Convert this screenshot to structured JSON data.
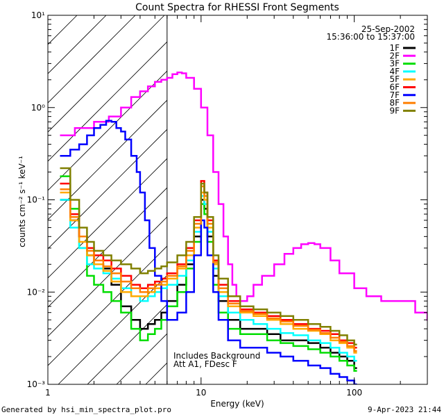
{
  "chart_data": {
    "type": "line",
    "title": "Count Spectra for RHESSI Front Segments",
    "date": "25-Sep-2002",
    "time_range": "15:36:00 to 15:37:00",
    "xlabel": "Energy (keV)",
    "ylabel": "counts cm⁻² s⁻¹ keV⁻¹",
    "xscale": "log",
    "yscale": "log",
    "xlim": [
      1,
      300
    ],
    "ylim": [
      0.001,
      10
    ],
    "x_ticks": [
      {
        "value": 1,
        "label": "1"
      },
      {
        "value": 10,
        "label": "10"
      },
      {
        "value": 100,
        "label": "100"
      }
    ],
    "y_ticks": [
      {
        "value": 0.001,
        "label": "10⁻³"
      },
      {
        "value": 0.01,
        "label": "10⁻²"
      },
      {
        "value": 0.1,
        "label": "10⁻¹"
      },
      {
        "value": 1,
        "label": "10⁰"
      },
      {
        "value": 10,
        "label": "10¹"
      }
    ],
    "shaded_region": {
      "x_from": 1,
      "x_to": 6,
      "style": "diagonal-hatch"
    },
    "annotations": [
      "Includes Background",
      "Att A1, FDesc F"
    ],
    "legend_position": "top-right",
    "series": [
      {
        "name": "1F",
        "color": "#000000",
        "x": [
          1.2,
          1.4,
          1.6,
          1.8,
          2.0,
          2.3,
          2.6,
          3.0,
          3.5,
          4.0,
          4.5,
          5.0,
          5.5,
          6.0,
          7.0,
          8.0,
          9.0,
          10.0,
          10.5,
          11.0,
          12.0,
          13.0,
          15.0,
          18.0,
          22.0,
          27.0,
          33.0,
          40.0,
          50.0,
          60.0,
          70.0,
          80.0,
          90.0,
          100.0
        ],
        "y": [
          0.1,
          0.06,
          0.04,
          0.025,
          0.02,
          0.018,
          0.012,
          0.007,
          0.005,
          0.004,
          0.0045,
          0.005,
          0.006,
          0.008,
          0.012,
          0.02,
          0.04,
          0.1,
          0.08,
          0.04,
          0.015,
          0.008,
          0.005,
          0.004,
          0.004,
          0.0035,
          0.003,
          0.003,
          0.0028,
          0.0025,
          0.0022,
          0.002,
          0.0018,
          0.0015
        ]
      },
      {
        "name": "2F",
        "color": "#ff00ff",
        "x": [
          1.2,
          1.5,
          2.0,
          2.5,
          3.0,
          3.5,
          4.0,
          4.5,
          5.0,
          5.5,
          6.0,
          6.5,
          7.0,
          7.5,
          8.0,
          9.0,
          10.0,
          11.0,
          12.0,
          13.0,
          14.0,
          15.0,
          16.0,
          17.0,
          18.0,
          20.0,
          22.0,
          25.0,
          30.0,
          35.0,
          40.0,
          45.0,
          50.0,
          55.0,
          60.0,
          70.0,
          80.0,
          100.0,
          120.0,
          150.0,
          180.0,
          200.0,
          250.0,
          300.0
        ],
        "y": [
          0.5,
          0.6,
          0.7,
          0.8,
          1.0,
          1.3,
          1.5,
          1.7,
          1.9,
          2.0,
          2.1,
          2.3,
          2.4,
          2.35,
          2.1,
          1.6,
          1.0,
          0.5,
          0.2,
          0.09,
          0.04,
          0.02,
          0.012,
          0.009,
          0.008,
          0.009,
          0.012,
          0.015,
          0.02,
          0.026,
          0.03,
          0.033,
          0.034,
          0.033,
          0.03,
          0.022,
          0.016,
          0.011,
          0.009,
          0.008,
          0.008,
          0.008,
          0.006,
          0.005
        ]
      },
      {
        "name": "3F",
        "color": "#00dd00",
        "x": [
          1.2,
          1.4,
          1.6,
          1.8,
          2.0,
          2.3,
          2.6,
          3.0,
          3.5,
          4.0,
          4.5,
          5.0,
          5.5,
          6.0,
          7.0,
          8.0,
          9.0,
          10.0,
          10.5,
          11.0,
          12.0,
          13.0,
          15.0,
          18.0,
          22.0,
          27.0,
          33.0,
          40.0,
          50.0,
          60.0,
          70.0,
          80.0,
          90.0,
          100.0
        ],
        "y": [
          0.18,
          0.08,
          0.03,
          0.015,
          0.012,
          0.01,
          0.008,
          0.006,
          0.004,
          0.003,
          0.0035,
          0.004,
          0.005,
          0.007,
          0.01,
          0.018,
          0.035,
          0.09,
          0.07,
          0.035,
          0.012,
          0.006,
          0.004,
          0.0035,
          0.0035,
          0.003,
          0.0028,
          0.0026,
          0.0024,
          0.0022,
          0.002,
          0.0018,
          0.0016,
          0.0014
        ]
      },
      {
        "name": "4F",
        "color": "#00ffff",
        "x": [
          1.2,
          1.4,
          1.6,
          1.8,
          2.0,
          2.3,
          2.6,
          3.0,
          3.5,
          4.0,
          4.5,
          5.0,
          5.5,
          6.0,
          7.0,
          8.0,
          9.0,
          10.0,
          10.5,
          11.0,
          12.0,
          13.0,
          15.0,
          18.0,
          22.0,
          27.0,
          33.0,
          40.0,
          50.0,
          60.0,
          70.0,
          80.0,
          90.0,
          100.0
        ],
        "y": [
          0.1,
          0.05,
          0.03,
          0.02,
          0.018,
          0.016,
          0.014,
          0.011,
          0.009,
          0.008,
          0.009,
          0.01,
          0.011,
          0.012,
          0.015,
          0.022,
          0.045,
          0.11,
          0.09,
          0.045,
          0.018,
          0.009,
          0.006,
          0.005,
          0.0045,
          0.004,
          0.0036,
          0.0034,
          0.003,
          0.0028,
          0.0025,
          0.0022,
          0.002,
          0.0018
        ]
      },
      {
        "name": "5F",
        "color": "#ffaa00",
        "x": [
          1.2,
          1.4,
          1.6,
          1.8,
          2.0,
          2.3,
          2.6,
          3.0,
          3.5,
          4.0,
          4.5,
          5.0,
          5.5,
          6.0,
          7.0,
          8.0,
          9.0,
          10.0,
          10.5,
          11.0,
          12.0,
          13.0,
          15.0,
          18.0,
          22.0,
          27.0,
          33.0,
          40.0,
          50.0,
          60.0,
          70.0,
          80.0,
          90.0,
          100.0
        ],
        "y": [
          0.12,
          0.06,
          0.035,
          0.025,
          0.02,
          0.017,
          0.013,
          0.01,
          0.009,
          0.009,
          0.01,
          0.011,
          0.012,
          0.014,
          0.018,
          0.025,
          0.05,
          0.12,
          0.1,
          0.05,
          0.02,
          0.01,
          0.007,
          0.006,
          0.0055,
          0.005,
          0.0045,
          0.004,
          0.0038,
          0.0035,
          0.003,
          0.0028,
          0.0025,
          0.0022
        ]
      },
      {
        "name": "6F",
        "color": "#ff0000",
        "x": [
          1.2,
          1.4,
          1.6,
          1.8,
          2.0,
          2.3,
          2.6,
          3.0,
          3.5,
          4.0,
          4.5,
          5.0,
          5.5,
          6.0,
          7.0,
          8.0,
          9.0,
          10.0,
          10.5,
          11.0,
          12.0,
          13.0,
          15.0,
          18.0,
          22.0,
          27.0,
          33.0,
          40.0,
          50.0,
          60.0,
          70.0,
          80.0,
          90.0,
          100.0
        ],
        "y": [
          0.15,
          0.07,
          0.04,
          0.03,
          0.025,
          0.022,
          0.018,
          0.015,
          0.012,
          0.011,
          0.012,
          0.013,
          0.014,
          0.016,
          0.02,
          0.03,
          0.06,
          0.16,
          0.12,
          0.06,
          0.022,
          0.012,
          0.008,
          0.0065,
          0.006,
          0.0055,
          0.005,
          0.0045,
          0.004,
          0.0038,
          0.0035,
          0.003,
          0.0028,
          0.0025
        ]
      },
      {
        "name": "7F",
        "color": "#0000ff",
        "x": [
          1.2,
          1.4,
          1.6,
          1.8,
          2.0,
          2.2,
          2.4,
          2.6,
          2.8,
          3.0,
          3.2,
          3.5,
          3.8,
          4.0,
          4.3,
          4.6,
          5.0,
          5.5,
          6.0,
          7.0,
          8.0,
          9.0,
          10.0,
          10.5,
          11.0,
          12.0,
          13.0,
          15.0,
          18.0,
          22.0,
          27.0,
          33.0,
          40.0,
          50.0,
          60.0,
          70.0,
          80.0,
          90.0,
          100.0
        ],
        "y": [
          0.3,
          0.35,
          0.4,
          0.5,
          0.6,
          0.65,
          0.72,
          0.7,
          0.6,
          0.55,
          0.45,
          0.3,
          0.2,
          0.12,
          0.06,
          0.03,
          0.015,
          0.008,
          0.005,
          0.006,
          0.01,
          0.025,
          0.06,
          0.05,
          0.025,
          0.01,
          0.005,
          0.003,
          0.0025,
          0.0025,
          0.0022,
          0.002,
          0.0018,
          0.0016,
          0.0015,
          0.0013,
          0.0012,
          0.0011,
          0.001
        ]
      },
      {
        "name": "8F",
        "color": "#ff7f00",
        "x": [
          1.2,
          1.4,
          1.6,
          1.8,
          2.0,
          2.3,
          2.6,
          3.0,
          3.5,
          4.0,
          4.5,
          5.0,
          5.5,
          6.0,
          7.0,
          8.0,
          9.0,
          10.0,
          10.5,
          11.0,
          12.0,
          13.0,
          15.0,
          18.0,
          22.0,
          27.0,
          33.0,
          40.0,
          50.0,
          60.0,
          70.0,
          80.0,
          90.0,
          100.0
        ],
        "y": [
          0.13,
          0.065,
          0.04,
          0.028,
          0.022,
          0.019,
          0.016,
          0.013,
          0.011,
          0.01,
          0.011,
          0.012,
          0.013,
          0.015,
          0.019,
          0.028,
          0.055,
          0.14,
          0.11,
          0.055,
          0.021,
          0.011,
          0.0075,
          0.0062,
          0.0058,
          0.0052,
          0.0048,
          0.0043,
          0.0039,
          0.0036,
          0.0032,
          0.0029,
          0.0026,
          0.0023
        ]
      },
      {
        "name": "9F",
        "color": "#808000",
        "x": [
          1.2,
          1.4,
          1.6,
          1.8,
          2.0,
          2.3,
          2.6,
          3.0,
          3.5,
          4.0,
          4.5,
          5.0,
          5.5,
          6.0,
          7.0,
          8.0,
          9.0,
          10.0,
          10.5,
          11.0,
          12.0,
          13.0,
          15.0,
          18.0,
          22.0,
          27.0,
          33.0,
          40.0,
          50.0,
          60.0,
          70.0,
          80.0,
          90.0,
          100.0
        ],
        "y": [
          0.22,
          0.1,
          0.05,
          0.035,
          0.028,
          0.025,
          0.022,
          0.02,
          0.018,
          0.016,
          0.017,
          0.018,
          0.019,
          0.021,
          0.025,
          0.035,
          0.065,
          0.15,
          0.12,
          0.065,
          0.025,
          0.014,
          0.009,
          0.007,
          0.0065,
          0.006,
          0.0055,
          0.005,
          0.0045,
          0.0042,
          0.0038,
          0.0034,
          0.003,
          0.0027
        ]
      }
    ]
  },
  "footer": {
    "left": "Generated by hsi_min_spectra_plot.pro",
    "right": "9-Apr-2023 21:44"
  }
}
